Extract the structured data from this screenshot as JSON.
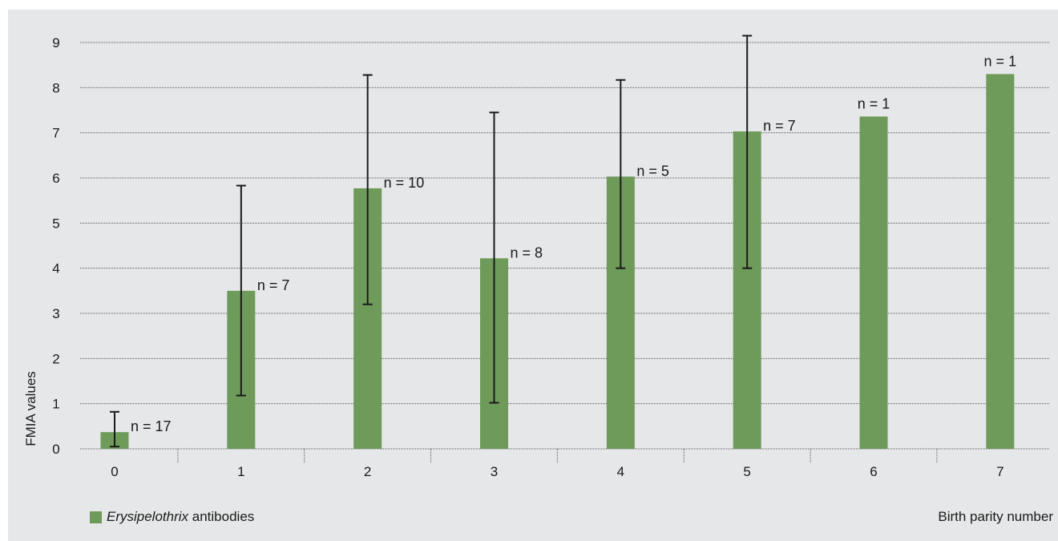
{
  "chart_data": {
    "type": "bar",
    "categories": [
      "0",
      "1",
      "2",
      "3",
      "4",
      "5",
      "6",
      "7"
    ],
    "series": [
      {
        "name": "Erysipelothrix antibodies",
        "values": [
          0.37,
          3.5,
          5.77,
          4.22,
          6.03,
          7.03,
          7.36,
          8.3
        ],
        "error_low": [
          0.05,
          1.18,
          3.2,
          1.02,
          4.0,
          4.0,
          null,
          null
        ],
        "error_high": [
          0.82,
          5.83,
          8.28,
          7.45,
          8.17,
          9.15,
          null,
          null
        ],
        "n_labels": [
          "n = 17",
          "n = 7",
          "n = 10",
          "n = 8",
          "n = 5",
          "n = 7",
          "n = 1",
          "n = 1"
        ]
      }
    ],
    "ylim": [
      0,
      9
    ],
    "yticks": [
      "0",
      "1",
      "2",
      "3",
      "4",
      "5",
      "6",
      "7",
      "8",
      "9"
    ],
    "ylabel": "FMIA values",
    "xlabel": "Birth parity number",
    "legend": {
      "italic": "Erysipelothrix",
      "rest": " antibodies",
      "position": "bottom-left"
    },
    "grid": true,
    "colors": {
      "bar": "#6e9a5a",
      "panel": "#e6e7e8",
      "error": "#1a1a1a",
      "grid": "#555555"
    }
  }
}
